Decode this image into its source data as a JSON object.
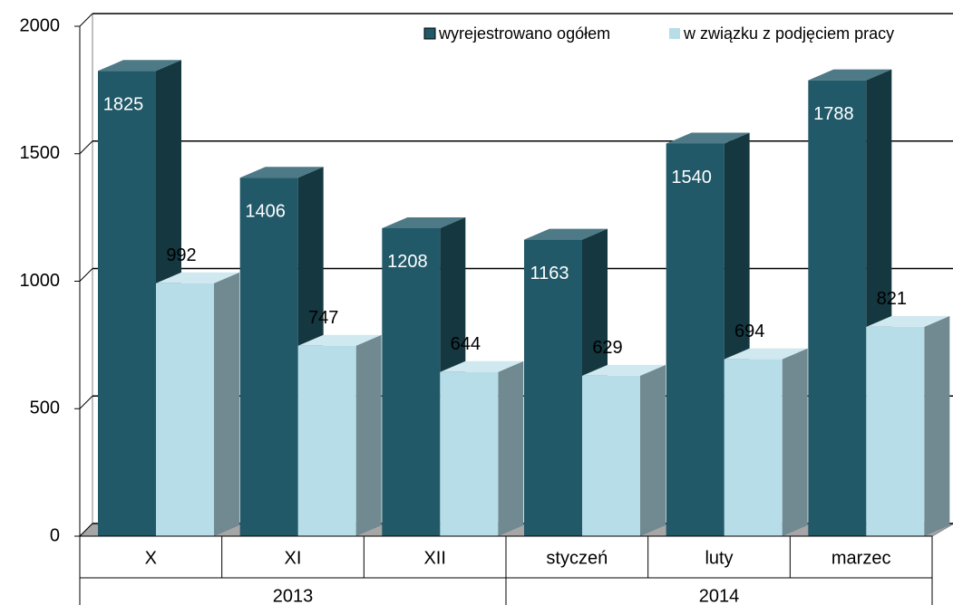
{
  "chart_data": {
    "type": "bar3d",
    "categories": [
      "X",
      "XI",
      "XII",
      "styczeń",
      "luty",
      "marzec"
    ],
    "groups": [
      {
        "label": "2013",
        "span": 3
      },
      {
        "label": "2014",
        "span": 3
      }
    ],
    "series": [
      {
        "name": "wyrejestrowano ogółem",
        "color": "#215968",
        "values": [
          1825,
          1406,
          1208,
          1163,
          1540,
          1788
        ]
      },
      {
        "name": "w związku z podjęciem pracy",
        "color": "#b7dde8",
        "values": [
          992,
          747,
          644,
          629,
          694,
          821
        ]
      }
    ],
    "ylim": [
      0,
      2000
    ],
    "yticks": [
      0,
      500,
      1000,
      1500,
      2000
    ],
    "grid": true
  }
}
